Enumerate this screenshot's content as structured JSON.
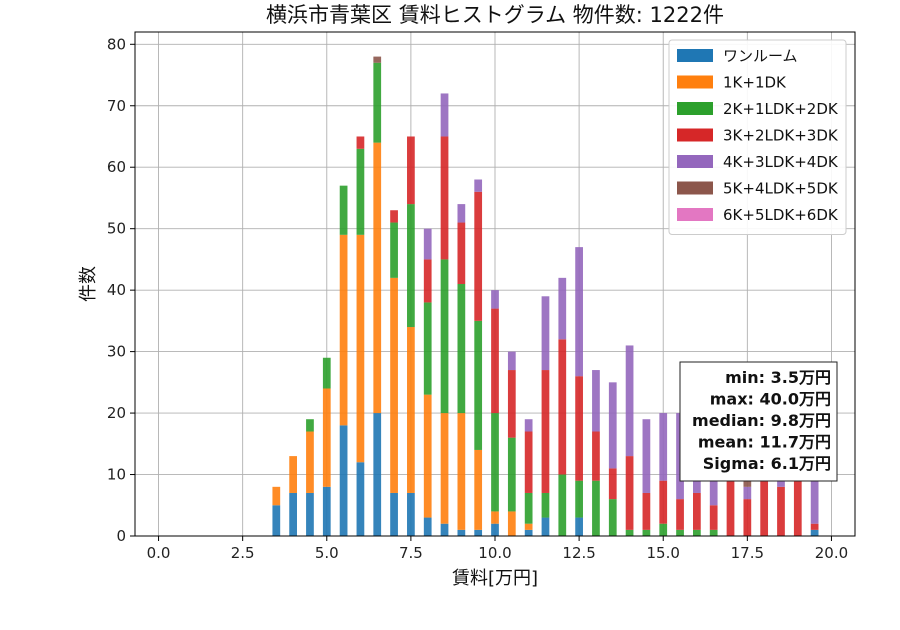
{
  "chart_data": {
    "type": "bar",
    "stacked": true,
    "title": "横浜市青葉区 賃料ヒストグラム 物件数: 1222件",
    "xlabel": "賃料[万円]",
    "ylabel": "件数",
    "xlim": [
      -0.7,
      20.7
    ],
    "ylim": [
      0,
      82
    ],
    "xticks": [
      0,
      2.5,
      5,
      7.5,
      10,
      12.5,
      15,
      17.5,
      20
    ],
    "xtick_labels": [
      "0.0",
      "2.5",
      "5.0",
      "7.5",
      "10.0",
      "12.5",
      "15.0",
      "17.5",
      "20.0"
    ],
    "yticks": [
      0,
      10,
      20,
      30,
      40,
      50,
      60,
      70,
      80
    ],
    "ytick_labels": [
      "0",
      "10",
      "20",
      "30",
      "40",
      "50",
      "60",
      "70",
      "80"
    ],
    "grid": true,
    "legend_position": "top-right",
    "bin_width": 0.25,
    "x": [
      3.5,
      3.75,
      4.0,
      4.25,
      4.5,
      4.75,
      5.0,
      5.25,
      5.5,
      5.75,
      6.0,
      6.25,
      6.5,
      6.75,
      7.0,
      7.25,
      7.5,
      7.75,
      8.0,
      8.25,
      8.5,
      8.75,
      9.0,
      9.25,
      9.5,
      9.75,
      10.0,
      10.25,
      10.5,
      10.75,
      11.0,
      11.25,
      11.5,
      11.75,
      12.0,
      12.25,
      12.5,
      12.75,
      13.0,
      13.25,
      13.5,
      13.75,
      14.0,
      14.25,
      14.5,
      14.75,
      15.0,
      15.25,
      15.5,
      15.75,
      16.0,
      16.25,
      16.5,
      16.75,
      17.0,
      17.25,
      17.5,
      17.75,
      18.0,
      18.25,
      18.5,
      18.75,
      19.0,
      19.25,
      19.5,
      19.75
    ],
    "series": [
      {
        "name": "ワンルーム",
        "color": "#1f77b4",
        "values": [
          5,
          0,
          7,
          0,
          7,
          0,
          8,
          0,
          18,
          0,
          12,
          0,
          20,
          0,
          7,
          0,
          7,
          0,
          3,
          0,
          2,
          0,
          1,
          0,
          1,
          0,
          2,
          0,
          0,
          0,
          1,
          0,
          3,
          0,
          0,
          0,
          3,
          0,
          0,
          0,
          0,
          0,
          0,
          0,
          0,
          0,
          0,
          0,
          0,
          0,
          0,
          0,
          0,
          0,
          0,
          0,
          0,
          0,
          0,
          0,
          0,
          0,
          0,
          0,
          1,
          0
        ]
      },
      {
        "name": "1K+1DK",
        "color": "#ff7f0e",
        "values": [
          3,
          0,
          6,
          0,
          10,
          0,
          16,
          0,
          31,
          0,
          37,
          0,
          44,
          0,
          35,
          0,
          27,
          0,
          20,
          0,
          18,
          0,
          19,
          0,
          13,
          0,
          2,
          0,
          4,
          0,
          1,
          0,
          0,
          0,
          0,
          0,
          0,
          0,
          0,
          0,
          0,
          0,
          0,
          0,
          0,
          0,
          0,
          0,
          0,
          0,
          0,
          0,
          0,
          0,
          0,
          0,
          0,
          0,
          0,
          0,
          0,
          0,
          0,
          0,
          0,
          0
        ]
      },
      {
        "name": "2K+1LDK+2DK",
        "color": "#2ca02c",
        "values": [
          0,
          0,
          0,
          0,
          2,
          0,
          5,
          0,
          8,
          0,
          14,
          0,
          13,
          0,
          9,
          0,
          20,
          0,
          15,
          0,
          25,
          0,
          21,
          0,
          21,
          0,
          16,
          0,
          12,
          0,
          5,
          0,
          4,
          0,
          10,
          0,
          6,
          0,
          9,
          0,
          6,
          0,
          1,
          0,
          1,
          0,
          2,
          0,
          1,
          0,
          1,
          0,
          1,
          0,
          0,
          0,
          0,
          0,
          0,
          0,
          0,
          0,
          0,
          0,
          0,
          0
        ]
      },
      {
        "name": "3K+2LDK+3DK",
        "color": "#d62728",
        "values": [
          0,
          0,
          0,
          0,
          0,
          0,
          0,
          0,
          0,
          0,
          2,
          0,
          0,
          0,
          2,
          0,
          11,
          0,
          7,
          0,
          20,
          0,
          10,
          0,
          21,
          0,
          17,
          0,
          11,
          0,
          10,
          0,
          20,
          0,
          22,
          0,
          17,
          0,
          8,
          0,
          5,
          0,
          12,
          0,
          6,
          0,
          7,
          0,
          5,
          0,
          6,
          0,
          4,
          0,
          12,
          0,
          6,
          0,
          12,
          0,
          8,
          0,
          13,
          0,
          1,
          0
        ]
      },
      {
        "name": "4K+3LDK+4DK",
        "color": "#9467bd",
        "values": [
          0,
          0,
          0,
          0,
          0,
          0,
          0,
          0,
          0,
          0,
          0,
          0,
          0,
          0,
          0,
          0,
          0,
          0,
          5,
          0,
          7,
          0,
          3,
          0,
          2,
          0,
          3,
          0,
          3,
          0,
          2,
          0,
          12,
          0,
          10,
          0,
          21,
          0,
          10,
          0,
          14,
          0,
          18,
          0,
          12,
          0,
          11,
          0,
          14,
          0,
          13,
          0,
          10,
          0,
          7,
          0,
          2,
          0,
          9,
          0,
          11,
          0,
          9,
          0,
          7,
          0
        ]
      },
      {
        "name": "5K+4LDK+5DK",
        "color": "#8c564b",
        "values": [
          0,
          0,
          0,
          0,
          0,
          0,
          0,
          0,
          0,
          0,
          0,
          0,
          1,
          0,
          0,
          0,
          0,
          0,
          0,
          0,
          0,
          0,
          0,
          0,
          0,
          0,
          0,
          0,
          0,
          0,
          0,
          0,
          0,
          0,
          0,
          0,
          0,
          0,
          0,
          0,
          0,
          0,
          0,
          0,
          0,
          0,
          0,
          0,
          0,
          0,
          0,
          0,
          1,
          0,
          0,
          0,
          2,
          0,
          0,
          0,
          0,
          0,
          0,
          0,
          0,
          0
        ]
      },
      {
        "name": "6K+5LDK+6DK",
        "color": "#e377c2",
        "values": [
          0,
          0,
          0,
          0,
          0,
          0,
          0,
          0,
          0,
          0,
          0,
          0,
          0,
          0,
          0,
          0,
          0,
          0,
          0,
          0,
          0,
          0,
          0,
          0,
          0,
          0,
          0,
          0,
          0,
          0,
          0,
          0,
          0,
          0,
          0,
          0,
          0,
          0,
          0,
          0,
          0,
          0,
          0,
          0,
          0,
          0,
          0,
          0,
          0,
          0,
          0,
          0,
          0,
          0,
          0,
          0,
          0,
          0,
          0,
          0,
          0,
          0,
          0,
          0,
          0,
          0
        ]
      }
    ],
    "stats_box": {
      "position": "right",
      "lines": [
        "min: 3.5万円",
        "max: 40.0万円",
        "median: 9.8万円",
        "mean: 11.7万円",
        "Sigma: 6.1万円"
      ]
    }
  }
}
